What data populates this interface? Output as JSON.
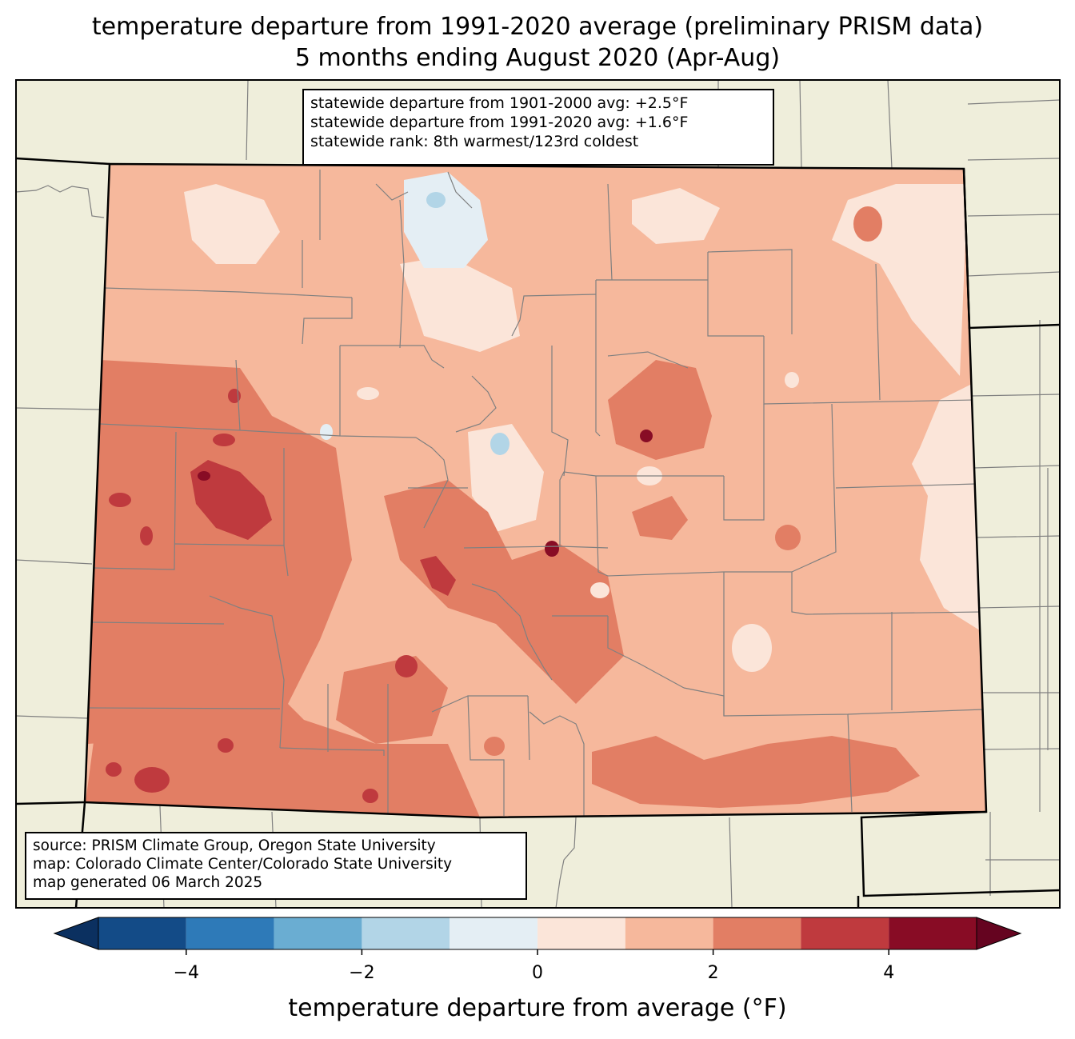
{
  "title": {
    "line1": "temperature departure from 1991-2020 average (preliminary PRISM data)",
    "line2": "5 months ending August 2020 (Apr-Aug)"
  },
  "stats_box": {
    "line1": "statewide departure from 1901-2000 avg: +2.5°F",
    "line2": "statewide departure from 1991-2020 avg: +1.6°F",
    "line3": "statewide rank: 8th warmest/123rd coldest"
  },
  "source_box": {
    "line1": "source: PRISM Climate Group, Oregon State University",
    "line2": "map: Colorado Climate Center/Colorado State University",
    "line3": "map generated 06 March 2025"
  },
  "colorbar": {
    "label": "temperature departure from average (°F)",
    "tick_values": [
      -4,
      -2,
      0,
      2,
      4
    ],
    "tick_labels": [
      "−4",
      "−2",
      "0",
      "2",
      "4"
    ],
    "bins": [
      {
        "from": -5,
        "to": -4,
        "color": "#134b87"
      },
      {
        "from": -4,
        "to": -3,
        "color": "#2e7ab8"
      },
      {
        "from": -3,
        "to": -2,
        "color": "#6aadd2"
      },
      {
        "from": -2,
        "to": -1,
        "color": "#b2d5e7"
      },
      {
        "from": -1,
        "to": 0,
        "color": "#e4eef4"
      },
      {
        "from": 0,
        "to": 1,
        "color": "#fbe5d9"
      },
      {
        "from": 1,
        "to": 2,
        "color": "#f6b89c"
      },
      {
        "from": 2,
        "to": 3,
        "color": "#e27e64"
      },
      {
        "from": 3,
        "to": 4,
        "color": "#bf3a3e"
      },
      {
        "from": 4,
        "to": 5,
        "color": "#880c25"
      }
    ],
    "under_color": "#0b3060",
    "over_color": "#650420"
  },
  "colors": {
    "land": "#efeedb",
    "county_lines": "#808080",
    "state_lines": "#000000"
  }
}
